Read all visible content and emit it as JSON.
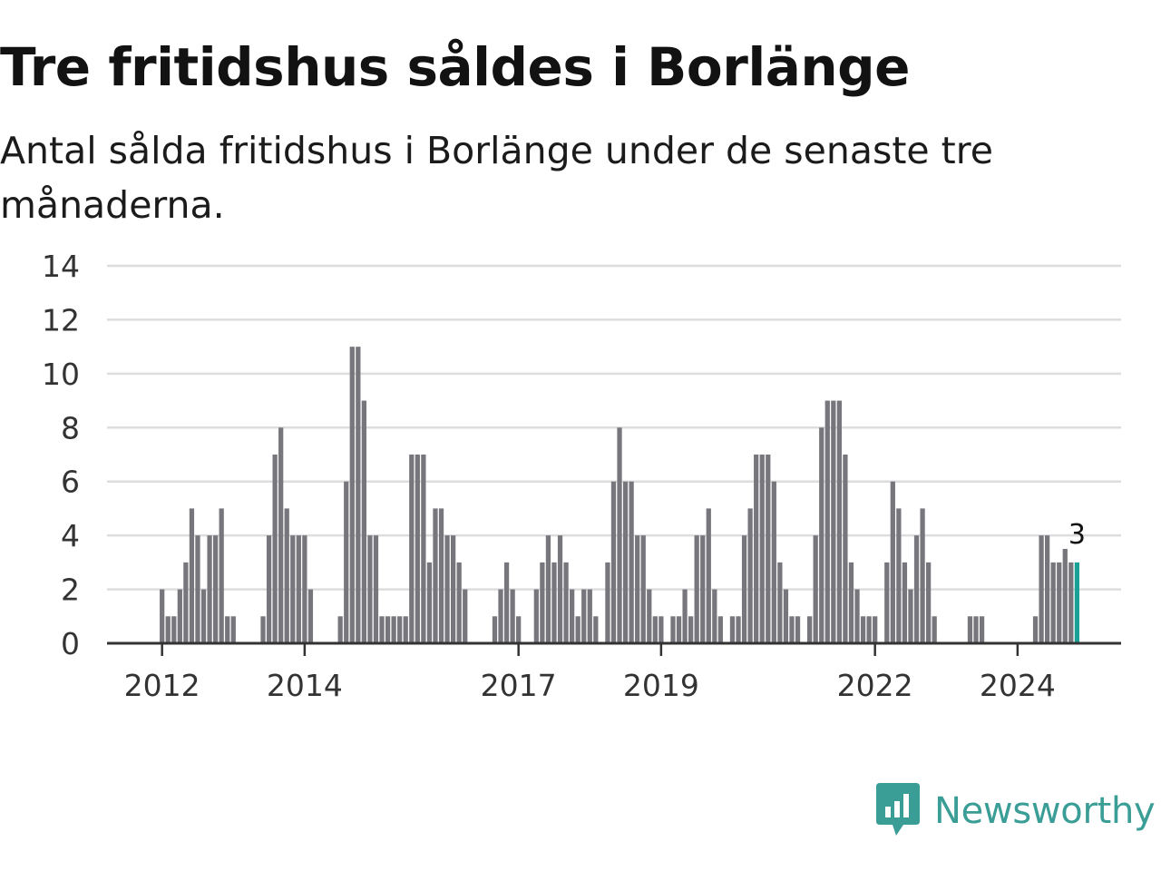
{
  "header": {
    "title": "Tre fritidshus såldes i Borlänge",
    "subtitle": "Antal sålda fritidshus i Borlänge under de senaste tre månaderna."
  },
  "brand": {
    "name": "Newsworthy",
    "color": "#3a9d96"
  },
  "colors": {
    "bar": "#76767c",
    "highlight": "#1aa197",
    "grid": "#dddddd",
    "axis": "#333333"
  },
  "chart_data": {
    "type": "bar",
    "title": "Tre fritidshus såldes i Borlänge",
    "subtitle": "Antal sålda fritidshus i Borlänge under de senaste tre månaderna.",
    "xlabel": "",
    "ylabel": "",
    "ylim": [
      0,
      14
    ],
    "yticks": [
      0,
      2,
      4,
      6,
      8,
      10,
      12,
      14
    ],
    "grid": true,
    "x_start": "2011-12",
    "x_end": "2024-11",
    "xticks": [
      {
        "label": "2012",
        "x": "2012-01"
      },
      {
        "label": "2014",
        "x": "2014-01"
      },
      {
        "label": "2017",
        "x": "2017-01"
      },
      {
        "label": "2019",
        "x": "2019-01"
      },
      {
        "label": "2022",
        "x": "2022-01"
      },
      {
        "label": "2024",
        "x": "2024-01"
      }
    ],
    "annotation": {
      "x": "2024-11",
      "text": "3"
    },
    "series": [
      {
        "values": [
          {
            "x": "2012-01",
            "y": 2
          },
          {
            "x": "2012-02",
            "y": 1
          },
          {
            "x": "2012-03",
            "y": 1
          },
          {
            "x": "2012-04",
            "y": 2
          },
          {
            "x": "2012-05",
            "y": 3
          },
          {
            "x": "2012-06",
            "y": 5
          },
          {
            "x": "2012-07",
            "y": 4
          },
          {
            "x": "2012-08",
            "y": 2
          },
          {
            "x": "2012-09",
            "y": 4
          },
          {
            "x": "2012-10",
            "y": 4
          },
          {
            "x": "2012-11",
            "y": 5
          },
          {
            "x": "2012-12",
            "y": 1
          },
          {
            "x": "2013-01",
            "y": 1
          },
          {
            "x": "2013-06",
            "y": 1
          },
          {
            "x": "2013-07",
            "y": 4
          },
          {
            "x": "2013-08",
            "y": 7
          },
          {
            "x": "2013-09",
            "y": 8
          },
          {
            "x": "2013-10",
            "y": 5
          },
          {
            "x": "2013-11",
            "y": 4
          },
          {
            "x": "2013-12",
            "y": 4
          },
          {
            "x": "2014-01",
            "y": 4
          },
          {
            "x": "2014-02",
            "y": 2
          },
          {
            "x": "2014-07",
            "y": 1
          },
          {
            "x": "2014-08",
            "y": 6
          },
          {
            "x": "2014-09",
            "y": 11
          },
          {
            "x": "2014-10",
            "y": 11
          },
          {
            "x": "2014-11",
            "y": 9
          },
          {
            "x": "2014-12",
            "y": 4
          },
          {
            "x": "2015-01",
            "y": 4
          },
          {
            "x": "2015-02",
            "y": 1
          },
          {
            "x": "2015-03",
            "y": 1
          },
          {
            "x": "2015-04",
            "y": 1
          },
          {
            "x": "2015-05",
            "y": 1
          },
          {
            "x": "2015-06",
            "y": 1
          },
          {
            "x": "2015-07",
            "y": 7
          },
          {
            "x": "2015-08",
            "y": 7
          },
          {
            "x": "2015-09",
            "y": 7
          },
          {
            "x": "2015-10",
            "y": 3
          },
          {
            "x": "2015-11",
            "y": 5
          },
          {
            "x": "2015-12",
            "y": 5
          },
          {
            "x": "2016-01",
            "y": 4
          },
          {
            "x": "2016-02",
            "y": 4
          },
          {
            "x": "2016-03",
            "y": 3
          },
          {
            "x": "2016-04",
            "y": 2
          },
          {
            "x": "2016-09",
            "y": 1
          },
          {
            "x": "2016-10",
            "y": 2
          },
          {
            "x": "2016-11",
            "y": 3
          },
          {
            "x": "2016-12",
            "y": 2
          },
          {
            "x": "2017-01",
            "y": 1
          },
          {
            "x": "2017-04",
            "y": 2
          },
          {
            "x": "2017-05",
            "y": 3
          },
          {
            "x": "2017-06",
            "y": 4
          },
          {
            "x": "2017-07",
            "y": 3
          },
          {
            "x": "2017-08",
            "y": 4
          },
          {
            "x": "2017-09",
            "y": 3
          },
          {
            "x": "2017-10",
            "y": 2
          },
          {
            "x": "2017-11",
            "y": 1
          },
          {
            "x": "2017-12",
            "y": 2
          },
          {
            "x": "2018-01",
            "y": 2
          },
          {
            "x": "2018-02",
            "y": 1
          },
          {
            "x": "2018-04",
            "y": 3
          },
          {
            "x": "2018-05",
            "y": 6
          },
          {
            "x": "2018-06",
            "y": 8
          },
          {
            "x": "2018-07",
            "y": 6
          },
          {
            "x": "2018-08",
            "y": 6
          },
          {
            "x": "2018-09",
            "y": 4
          },
          {
            "x": "2018-10",
            "y": 4
          },
          {
            "x": "2018-11",
            "y": 2
          },
          {
            "x": "2018-12",
            "y": 1
          },
          {
            "x": "2019-01",
            "y": 1
          },
          {
            "x": "2019-03",
            "y": 1
          },
          {
            "x": "2019-04",
            "y": 1
          },
          {
            "x": "2019-05",
            "y": 2
          },
          {
            "x": "2019-06",
            "y": 1
          },
          {
            "x": "2019-07",
            "y": 4
          },
          {
            "x": "2019-08",
            "y": 4
          },
          {
            "x": "2019-09",
            "y": 5
          },
          {
            "x": "2019-10",
            "y": 2
          },
          {
            "x": "2019-11",
            "y": 1
          },
          {
            "x": "2020-01",
            "y": 1
          },
          {
            "x": "2020-02",
            "y": 1
          },
          {
            "x": "2020-03",
            "y": 4
          },
          {
            "x": "2020-04",
            "y": 5
          },
          {
            "x": "2020-05",
            "y": 7
          },
          {
            "x": "2020-06",
            "y": 7
          },
          {
            "x": "2020-07",
            "y": 7
          },
          {
            "x": "2020-08",
            "y": 6
          },
          {
            "x": "2020-09",
            "y": 3
          },
          {
            "x": "2020-10",
            "y": 2
          },
          {
            "x": "2020-11",
            "y": 1
          },
          {
            "x": "2020-12",
            "y": 1
          },
          {
            "x": "2021-02",
            "y": 1
          },
          {
            "x": "2021-03",
            "y": 4
          },
          {
            "x": "2021-04",
            "y": 8
          },
          {
            "x": "2021-05",
            "y": 9
          },
          {
            "x": "2021-06",
            "y": 9
          },
          {
            "x": "2021-07",
            "y": 9
          },
          {
            "x": "2021-08",
            "y": 7
          },
          {
            "x": "2021-09",
            "y": 3
          },
          {
            "x": "2021-10",
            "y": 2
          },
          {
            "x": "2021-11",
            "y": 1
          },
          {
            "x": "2021-12",
            "y": 1
          },
          {
            "x": "2022-01",
            "y": 1
          },
          {
            "x": "2022-03",
            "y": 3
          },
          {
            "x": "2022-04",
            "y": 6
          },
          {
            "x": "2022-05",
            "y": 5
          },
          {
            "x": "2022-06",
            "y": 3
          },
          {
            "x": "2022-07",
            "y": 2
          },
          {
            "x": "2022-08",
            "y": 4
          },
          {
            "x": "2022-09",
            "y": 5
          },
          {
            "x": "2022-10",
            "y": 3
          },
          {
            "x": "2022-11",
            "y": 1
          },
          {
            "x": "2023-05",
            "y": 1
          },
          {
            "x": "2023-06",
            "y": 1
          },
          {
            "x": "2023-07",
            "y": 1
          },
          {
            "x": "2024-04",
            "y": 1
          },
          {
            "x": "2024-05",
            "y": 4
          },
          {
            "x": "2024-06",
            "y": 4
          },
          {
            "x": "2024-07",
            "y": 3
          },
          {
            "x": "2024-08",
            "y": 3
          },
          {
            "x": "2024-09",
            "y": 3.5
          },
          {
            "x": "2024-10",
            "y": 3
          },
          {
            "x": "2024-11",
            "y": 3
          }
        ]
      }
    ]
  }
}
